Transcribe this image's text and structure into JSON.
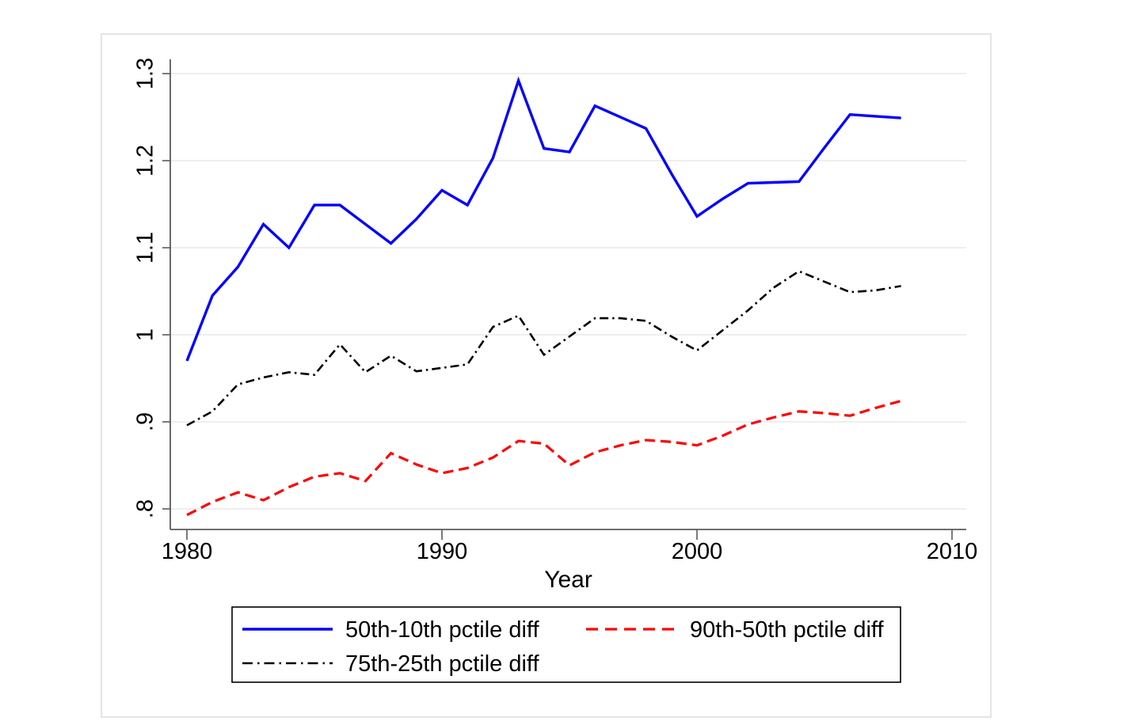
{
  "figure": {
    "aria_label": "Stata line graph of percentile wage differences by year",
    "background": "#ffffff",
    "border_color": "#dcdcdc",
    "axis_color": "#5a5a5a",
    "grid_color": "#e8e8e8",
    "text_color": "#000000",
    "legend_border_color": "#000000"
  },
  "chart_data": {
    "type": "line",
    "title": "",
    "xlabel": "Year",
    "ylabel": "",
    "grid": "horizontal",
    "legend_position": "bottom",
    "xlim": [
      1979.35,
      2010.56
    ],
    "ylim": [
      0.776,
      1.316
    ],
    "x_ticks": [
      1980,
      1990,
      2000,
      2010
    ],
    "y_ticks": [
      {
        "value": 0.8,
        "label": ".8"
      },
      {
        "value": 0.9,
        "label": ".9"
      },
      {
        "value": 1.0,
        "label": "1"
      },
      {
        "value": 1.1,
        "label": "1.1"
      },
      {
        "value": 1.2,
        "label": "1.2"
      },
      {
        "value": 1.3,
        "label": "1.3"
      }
    ],
    "x": [
      1980,
      1981,
      1982,
      1983,
      1984,
      1985,
      1986,
      1987,
      1988,
      1989,
      1990,
      1991,
      1992,
      1993,
      1994,
      1995,
      1996,
      1997,
      1998,
      1999,
      2000,
      2001,
      2002,
      2003,
      2004,
      2005,
      2006,
      2007,
      2008
    ],
    "series": [
      {
        "name": "50th-10th pctile diff",
        "color": "#0000ff",
        "style": "solid",
        "width": 3.4,
        "values": [
          0.97,
          1.045,
          1.078,
          1.127,
          1.1,
          1.149,
          1.149,
          1.127,
          1.105,
          1.133,
          1.166,
          1.149,
          1.203,
          1.292,
          1.214,
          1.21,
          1.263,
          1.25,
          1.237,
          1.185,
          1.136,
          1.156,
          1.174,
          1.175,
          1.176,
          1.215,
          1.253,
          1.251,
          1.249
        ]
      },
      {
        "name": "90th-50th pctile diff",
        "color": "#ff0000",
        "style": "dashed",
        "width": 3.2,
        "values": [
          0.793,
          0.808,
          0.819,
          0.81,
          0.825,
          0.837,
          0.841,
          0.832,
          0.864,
          0.851,
          0.841,
          0.847,
          0.859,
          0.878,
          0.875,
          0.85,
          0.865,
          0.873,
          0.879,
          0.877,
          0.873,
          0.884,
          0.897,
          0.905,
          0.912,
          0.91,
          0.907,
          0.916,
          0.924
        ]
      },
      {
        "name": "75th-25th pctile diff",
        "color": "#000000",
        "style": "dashdot",
        "width": 2.6,
        "values": [
          0.896,
          0.912,
          0.943,
          0.951,
          0.957,
          0.954,
          0.989,
          0.957,
          0.976,
          0.958,
          0.962,
          0.966,
          1.009,
          1.022,
          0.977,
          0.998,
          1.019,
          1.019,
          1.016,
          0.998,
          0.982,
          1.005,
          1.028,
          1.054,
          1.073,
          1.061,
          1.049,
          1.051,
          1.056
        ]
      }
    ]
  }
}
